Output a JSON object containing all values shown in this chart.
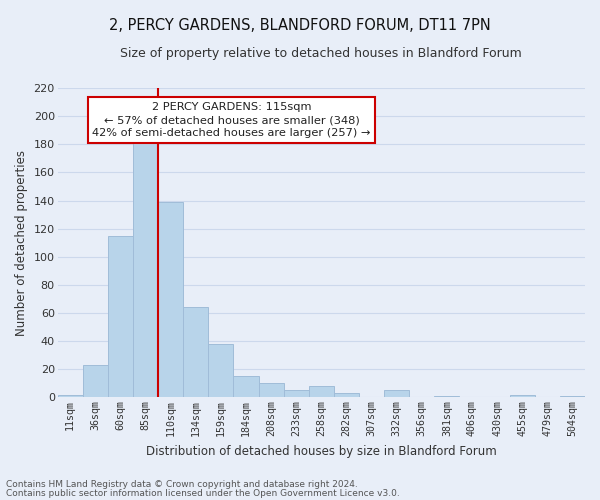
{
  "title": "2, PERCY GARDENS, BLANDFORD FORUM, DT11 7PN",
  "subtitle": "Size of property relative to detached houses in Blandford Forum",
  "xlabel": "Distribution of detached houses by size in Blandford Forum",
  "ylabel": "Number of detached properties",
  "footnote1": "Contains HM Land Registry data © Crown copyright and database right 2024.",
  "footnote2": "Contains public sector information licensed under the Open Government Licence v3.0.",
  "bar_labels": [
    "11sqm",
    "36sqm",
    "60sqm",
    "85sqm",
    "110sqm",
    "134sqm",
    "159sqm",
    "184sqm",
    "208sqm",
    "233sqm",
    "258sqm",
    "282sqm",
    "307sqm",
    "332sqm",
    "356sqm",
    "381sqm",
    "406sqm",
    "430sqm",
    "455sqm",
    "479sqm",
    "504sqm"
  ],
  "bar_values": [
    2,
    23,
    115,
    183,
    139,
    64,
    38,
    15,
    10,
    5,
    8,
    3,
    0,
    5,
    0,
    1,
    0,
    0,
    2,
    0,
    1
  ],
  "bar_color": "#b8d4ea",
  "bar_edge_color": "#a0bcd8",
  "vline_color": "#cc0000",
  "ylim": [
    0,
    220
  ],
  "yticks": [
    0,
    20,
    40,
    60,
    80,
    100,
    120,
    140,
    160,
    180,
    200,
    220
  ],
  "annotation_title": "2 PERCY GARDENS: 115sqm",
  "annotation_line1": "← 57% of detached houses are smaller (348)",
  "annotation_line2": "42% of semi-detached houses are larger (257) →",
  "annotation_box_color": "white",
  "annotation_box_edge": "#cc0000",
  "grid_color": "#ccd8ec",
  "bg_color": "#e8eef8"
}
